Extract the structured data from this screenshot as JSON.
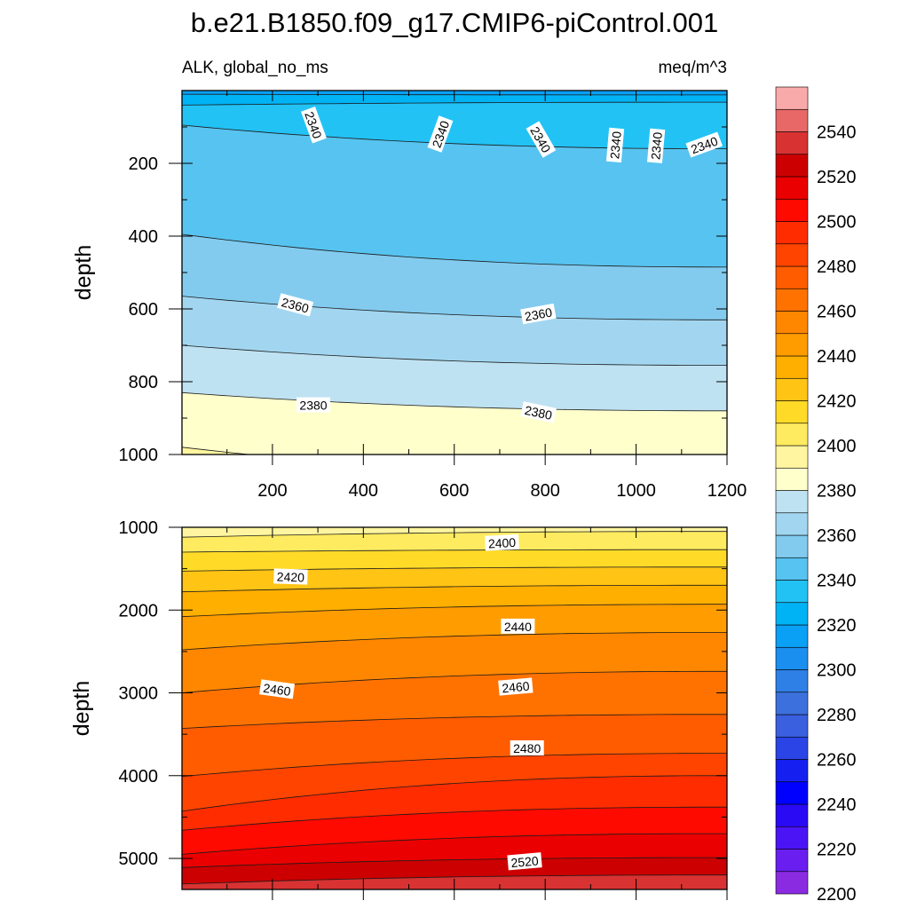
{
  "title": "b.e21.B1850.f09_g17.CMIP6-piControl.001",
  "chart_data": [
    {
      "type": "contour",
      "panel": "upper",
      "left_string": "ALK, global_no_ms",
      "right_string": "meq/m^3",
      "ylabel": "depth",
      "xlabel": "",
      "xlim": [
        1,
        1200
      ],
      "ylim": [
        1000,
        0
      ],
      "y_reversed": true,
      "x_ticks": [
        "200",
        "400",
        "600",
        "800",
        "1000",
        "1200"
      ],
      "y_ticks": [
        "200",
        "400",
        "600",
        "800",
        "1000"
      ],
      "x_tick_values": [
        200,
        400,
        600,
        800,
        1000,
        1200
      ],
      "y_tick_values": [
        200,
        400,
        600,
        800,
        1000
      ],
      "contour_lines": [
        {
          "level": 2320,
          "depth_at_start": 10,
          "depth_at_end": 12
        },
        {
          "level": 2330,
          "depth_at_start": 40,
          "depth_at_end": 32
        },
        {
          "level": 2340,
          "depth_at_start": 95,
          "depth_at_end": 160
        },
        {
          "level": 2350,
          "depth_at_start": 395,
          "depth_at_end": 485
        },
        {
          "level": 2360,
          "depth_at_start": 565,
          "depth_at_end": 630
        },
        {
          "level": 2370,
          "depth_at_start": 700,
          "depth_at_end": 755
        },
        {
          "level": 2380,
          "depth_at_start": 830,
          "depth_at_end": 880
        },
        {
          "level": 2390,
          "depth_at_start": 980,
          "depth_at_end": 1060
        }
      ],
      "contour_labels": [
        {
          "text": "2340",
          "x": 290,
          "depth": 95,
          "angle": 70
        },
        {
          "text": "2340",
          "x": 570,
          "depth": 120,
          "angle": -70
        },
        {
          "text": "2340",
          "x": 790,
          "depth": 135,
          "angle": 60
        },
        {
          "text": "2340",
          "x": 955,
          "depth": 150,
          "angle": -85
        },
        {
          "text": "2340",
          "x": 1045,
          "depth": 152,
          "angle": -85
        },
        {
          "text": "2340",
          "x": 1150,
          "depth": 150,
          "angle": -20
        },
        {
          "text": "2360",
          "x": 250,
          "depth": 590,
          "angle": 15
        },
        {
          "text": "2360",
          "x": 785,
          "depth": 615,
          "angle": -10
        },
        {
          "text": "2380",
          "x": 290,
          "depth": 865,
          "angle": 0
        },
        {
          "text": "2380",
          "x": 785,
          "depth": 885,
          "angle": 12
        }
      ]
    },
    {
      "type": "contour",
      "panel": "lower",
      "left_string": "",
      "right_string": "",
      "ylabel": "depth",
      "xlabel": "",
      "xlim": [
        1,
        1200
      ],
      "ylim": [
        5375,
        1000
      ],
      "y_reversed": true,
      "x_ticks": [],
      "y_ticks": [
        "1000",
        "2000",
        "3000",
        "4000",
        "5000"
      ],
      "y_tick_values": [
        1000,
        2000,
        3000,
        4000,
        5000
      ],
      "contour_lines": [
        {
          "level": 2390,
          "depth_at_start": 1000,
          "depth_at_end": 1000
        },
        {
          "level": 2400,
          "depth_at_start": 1120,
          "depth_at_end": 1050
        },
        {
          "level": 2410,
          "depth_at_start": 1300,
          "depth_at_end": 1270
        },
        {
          "level": 2420,
          "depth_at_start": 1530,
          "depth_at_end": 1480
        },
        {
          "level": 2430,
          "depth_at_start": 1780,
          "depth_at_end": 1700
        },
        {
          "level": 2440,
          "depth_at_start": 2080,
          "depth_at_end": 1930
        },
        {
          "level": 2450,
          "depth_at_start": 2480,
          "depth_at_end": 2270
        },
        {
          "level": 2460,
          "depth_at_start": 3000,
          "depth_at_end": 2740
        },
        {
          "level": 2470,
          "depth_at_start": 3430,
          "depth_at_end": 3260
        },
        {
          "level": 2480,
          "depth_at_start": 4010,
          "depth_at_end": 3730
        },
        {
          "level": 2490,
          "depth_at_start": 4430,
          "depth_at_end": 4000
        },
        {
          "level": 2500,
          "depth_at_start": 4660,
          "depth_at_end": 4380
        },
        {
          "level": 2510,
          "depth_at_start": 4950,
          "depth_at_end": 4700
        },
        {
          "level": 2520,
          "depth_at_start": 5110,
          "depth_at_end": 4990
        },
        {
          "level": 2530,
          "depth_at_start": 5310,
          "depth_at_end": 5200
        }
      ],
      "contour_labels": [
        {
          "text": "2400",
          "x": 705,
          "depth": 1190,
          "angle": -3
        },
        {
          "text": "2420",
          "x": 240,
          "depth": 1600,
          "angle": 2
        },
        {
          "text": "2440",
          "x": 740,
          "depth": 2200,
          "angle": 0
        },
        {
          "text": "2460",
          "x": 210,
          "depth": 2960,
          "angle": 8
        },
        {
          "text": "2460",
          "x": 735,
          "depth": 2930,
          "angle": -5
        },
        {
          "text": "2480",
          "x": 760,
          "depth": 3670,
          "angle": 0
        },
        {
          "text": "2520",
          "x": 755,
          "depth": 5040,
          "angle": -5
        }
      ]
    }
  ],
  "colorbar": {
    "levels": [
      2200,
      2210,
      2220,
      2230,
      2240,
      2250,
      2260,
      2270,
      2280,
      2290,
      2300,
      2310,
      2320,
      2330,
      2340,
      2350,
      2360,
      2370,
      2380,
      2390,
      2400,
      2410,
      2420,
      2430,
      2440,
      2450,
      2460,
      2470,
      2480,
      2490,
      2500,
      2510,
      2520,
      2530,
      2540,
      2550
    ],
    "labels": [
      "2200",
      "2220",
      "2240",
      "2260",
      "2280",
      "2300",
      "2320",
      "2340",
      "2360",
      "2380",
      "2400",
      "2420",
      "2440",
      "2460",
      "2480",
      "2500",
      "2520",
      "2540"
    ],
    "colors": [
      "#8a2be2",
      "#6a1ef0",
      "#4b14f5",
      "#2a0af5",
      "#0000ff",
      "#1520f0",
      "#2a44e6",
      "#3a60e0",
      "#3c70dc",
      "#2f80e6",
      "#1b8ff0",
      "#0aa0f5",
      "#00b3f5",
      "#22c2f5",
      "#57c3f0",
      "#82cbef",
      "#a2d6f0",
      "#bfe2f2",
      "#ffffcc",
      "#fff5a0",
      "#ffeb60",
      "#ffdb28",
      "#ffc414",
      "#ffaf00",
      "#ff9c00",
      "#ff8700",
      "#ff7200",
      "#ff5c00",
      "#ff4400",
      "#ff2c00",
      "#ff0a00",
      "#ea0000",
      "#cc0000",
      "#d83232",
      "#e86868",
      "#f8aaaa"
    ]
  }
}
